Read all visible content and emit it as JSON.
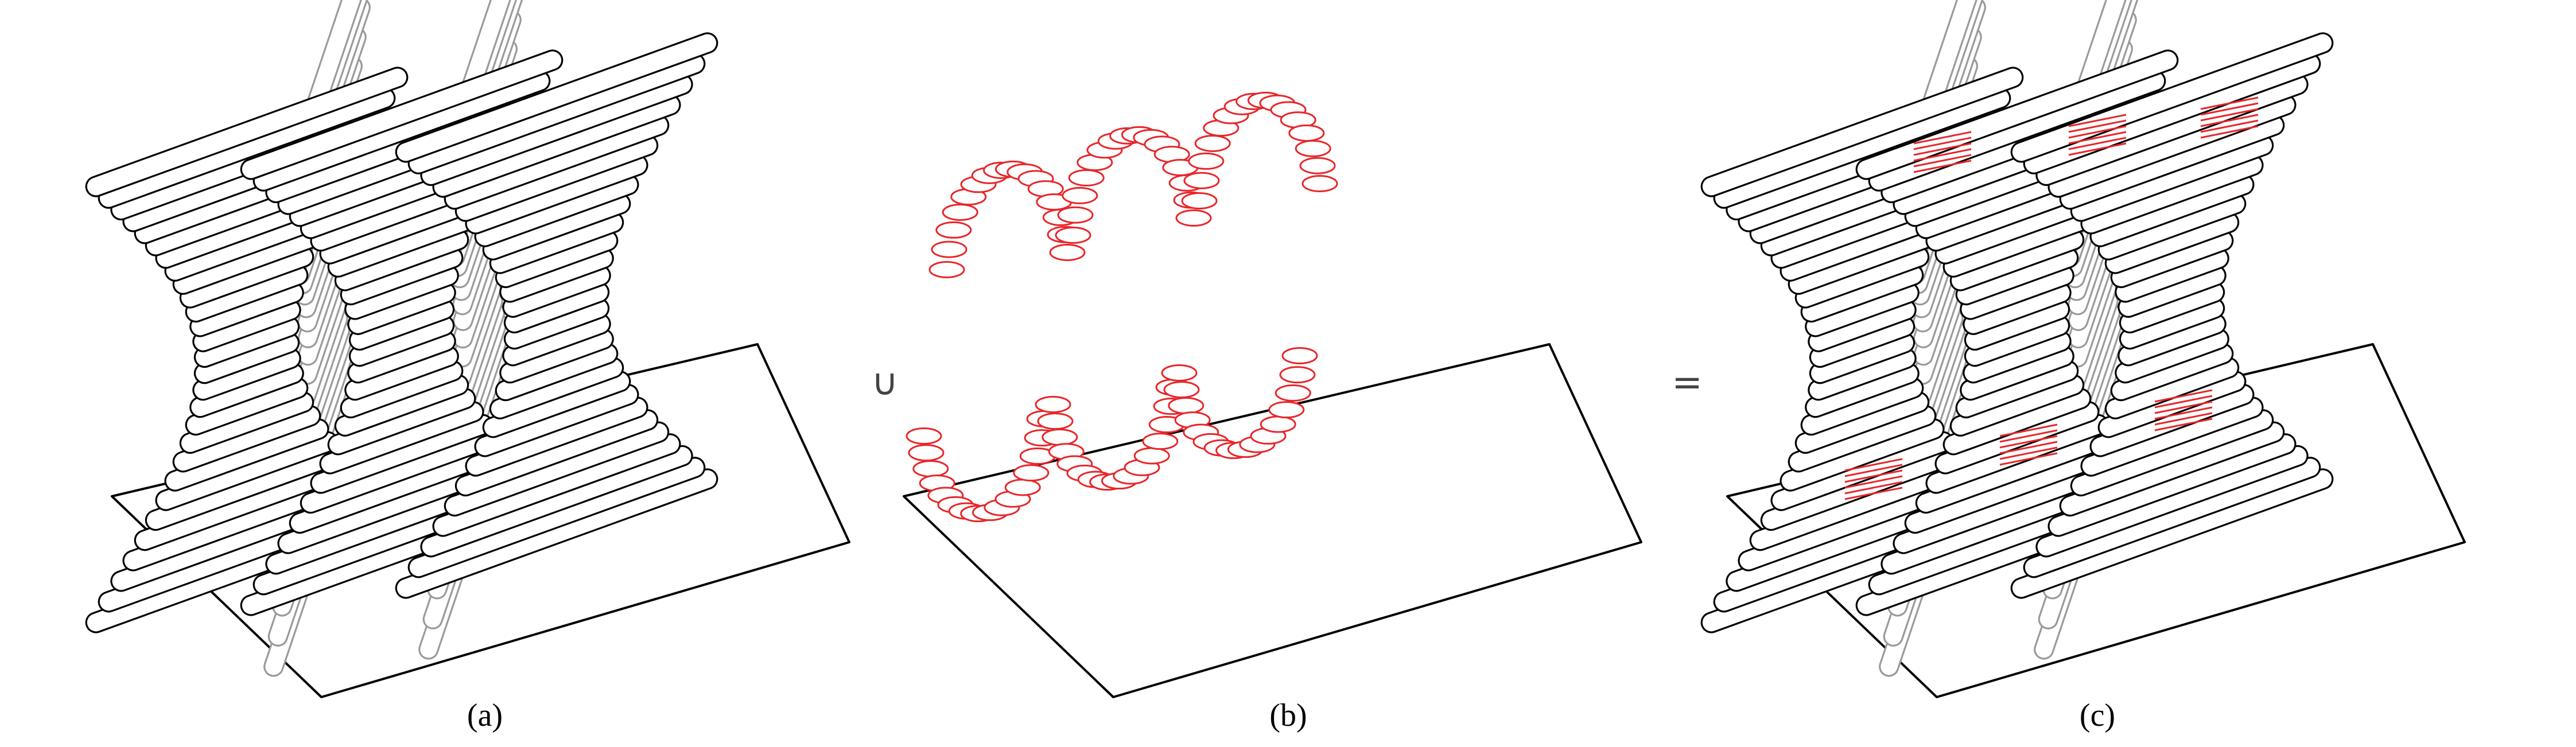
{
  "figure": {
    "panels": [
      {
        "id": "a",
        "caption": "(a)",
        "layers": [
          "black"
        ]
      },
      {
        "id": "b",
        "caption": "(b)",
        "layers": [
          "red"
        ]
      },
      {
        "id": "c",
        "caption": "(c)",
        "layers": [
          "black",
          "red"
        ]
      }
    ],
    "operators": {
      "union": "∪",
      "equals": "="
    },
    "colors": {
      "structure": "#000000",
      "hidden": "#9a9a9a",
      "support": "#e8262a",
      "plate": "#000000"
    }
  }
}
